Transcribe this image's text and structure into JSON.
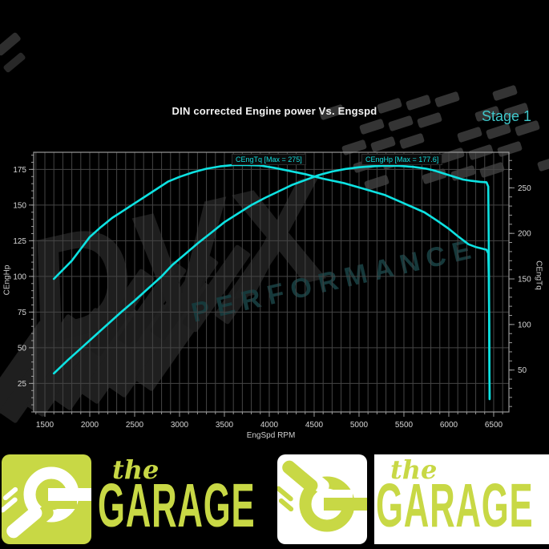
{
  "header": {
    "title": "DIN corrected Engine power Vs. Engspd",
    "stage_label": "Stage 1"
  },
  "watermark": {
    "line1": "DVX",
    "line2": "PERFORMANCE"
  },
  "colors": {
    "curve_cyan": "#0de2e2",
    "stage_teal": "#3fc6c9",
    "grid_gray": "#454545",
    "frame_gray": "#9a9a9a",
    "tick_text": "#d6d6d6",
    "banner_lime": "#c8d845",
    "watermark_teal": "#16393b",
    "watermark_gray": "#303030"
  },
  "chart_data": {
    "type": "line",
    "title": "DIN corrected Engine power Vs. Engspd",
    "xlabel": "EngSpd RPM",
    "ylabel_left": "CEngHp",
    "ylabel_right": "CEngTq",
    "grid": true,
    "x_axis": {
      "min": 1375,
      "max": 6670,
      "ticks": [
        1500,
        2000,
        2500,
        3000,
        3500,
        4000,
        4500,
        5000,
        5500,
        6000,
        6500
      ],
      "minor_step": 100
    },
    "left_axis": {
      "min": 5,
      "max": 187,
      "ticks": [
        25,
        50,
        75,
        100,
        125,
        150,
        175
      ],
      "minor_step": 5
    },
    "right_axis": {
      "min": 4,
      "max": 289,
      "ticks": [
        50,
        100,
        150,
        200,
        250
      ],
      "minor_step": 10
    },
    "series": [
      {
        "name": "CEngTq",
        "label": "CEngTq [Max = 275]",
        "axis": "right",
        "max": 275,
        "points": [
          [
            1600,
            150
          ],
          [
            1700,
            160
          ],
          [
            1800,
            170
          ],
          [
            1900,
            183
          ],
          [
            2000,
            196
          ],
          [
            2125,
            207
          ],
          [
            2250,
            217
          ],
          [
            2375,
            225
          ],
          [
            2500,
            233
          ],
          [
            2625,
            241
          ],
          [
            2750,
            249
          ],
          [
            2875,
            257
          ],
          [
            3000,
            262
          ],
          [
            3150,
            267
          ],
          [
            3300,
            271
          ],
          [
            3450,
            273.5
          ],
          [
            3600,
            275
          ],
          [
            3750,
            275
          ],
          [
            3900,
            274.5
          ],
          [
            4050,
            272
          ],
          [
            4200,
            269
          ],
          [
            4400,
            265
          ],
          [
            4600,
            260
          ],
          [
            4840,
            255
          ],
          [
            5050,
            249
          ],
          [
            5290,
            242
          ],
          [
            5500,
            233
          ],
          [
            5730,
            223
          ],
          [
            5870,
            214
          ],
          [
            6000,
            205
          ],
          [
            6100,
            197
          ],
          [
            6220,
            188
          ],
          [
            6300,
            185
          ],
          [
            6360,
            183.5
          ],
          [
            6420,
            182
          ],
          [
            6440,
            178
          ],
          [
            6446,
            150
          ],
          [
            6450,
            100
          ],
          [
            6453,
            45
          ],
          [
            6455,
            19
          ]
        ]
      },
      {
        "name": "CEngHp",
        "label": "CEngHp [Max = 177.6]",
        "axis": "left",
        "max": 177.6,
        "points": [
          [
            1600,
            32
          ],
          [
            1750,
            41
          ],
          [
            1900,
            49.5
          ],
          [
            2050,
            58
          ],
          [
            2200,
            66.5
          ],
          [
            2350,
            75
          ],
          [
            2500,
            83
          ],
          [
            2650,
            91.5
          ],
          [
            2800,
            100
          ],
          [
            2920,
            108
          ],
          [
            3050,
            115
          ],
          [
            3200,
            123
          ],
          [
            3350,
            130.5
          ],
          [
            3500,
            138
          ],
          [
            3650,
            144
          ],
          [
            3800,
            150
          ],
          [
            3950,
            155
          ],
          [
            4100,
            159.5
          ],
          [
            4250,
            164
          ],
          [
            4400,
            167.5
          ],
          [
            4550,
            171
          ],
          [
            4700,
            173.5
          ],
          [
            4850,
            175.3
          ],
          [
            5000,
            176.5
          ],
          [
            5150,
            177.2
          ],
          [
            5300,
            177.6
          ],
          [
            5450,
            177.5
          ],
          [
            5600,
            176.8
          ],
          [
            5750,
            175.5
          ],
          [
            5850,
            174
          ],
          [
            5950,
            172
          ],
          [
            6050,
            170
          ],
          [
            6150,
            168
          ],
          [
            6250,
            167
          ],
          [
            6350,
            166.3
          ],
          [
            6420,
            166
          ],
          [
            6440,
            163
          ],
          [
            6446,
            120
          ],
          [
            6450,
            70
          ],
          [
            6453,
            30
          ],
          [
            6455,
            14
          ]
        ]
      }
    ]
  },
  "banner": {
    "the_label": "the",
    "garage_label": "GARAGE"
  }
}
